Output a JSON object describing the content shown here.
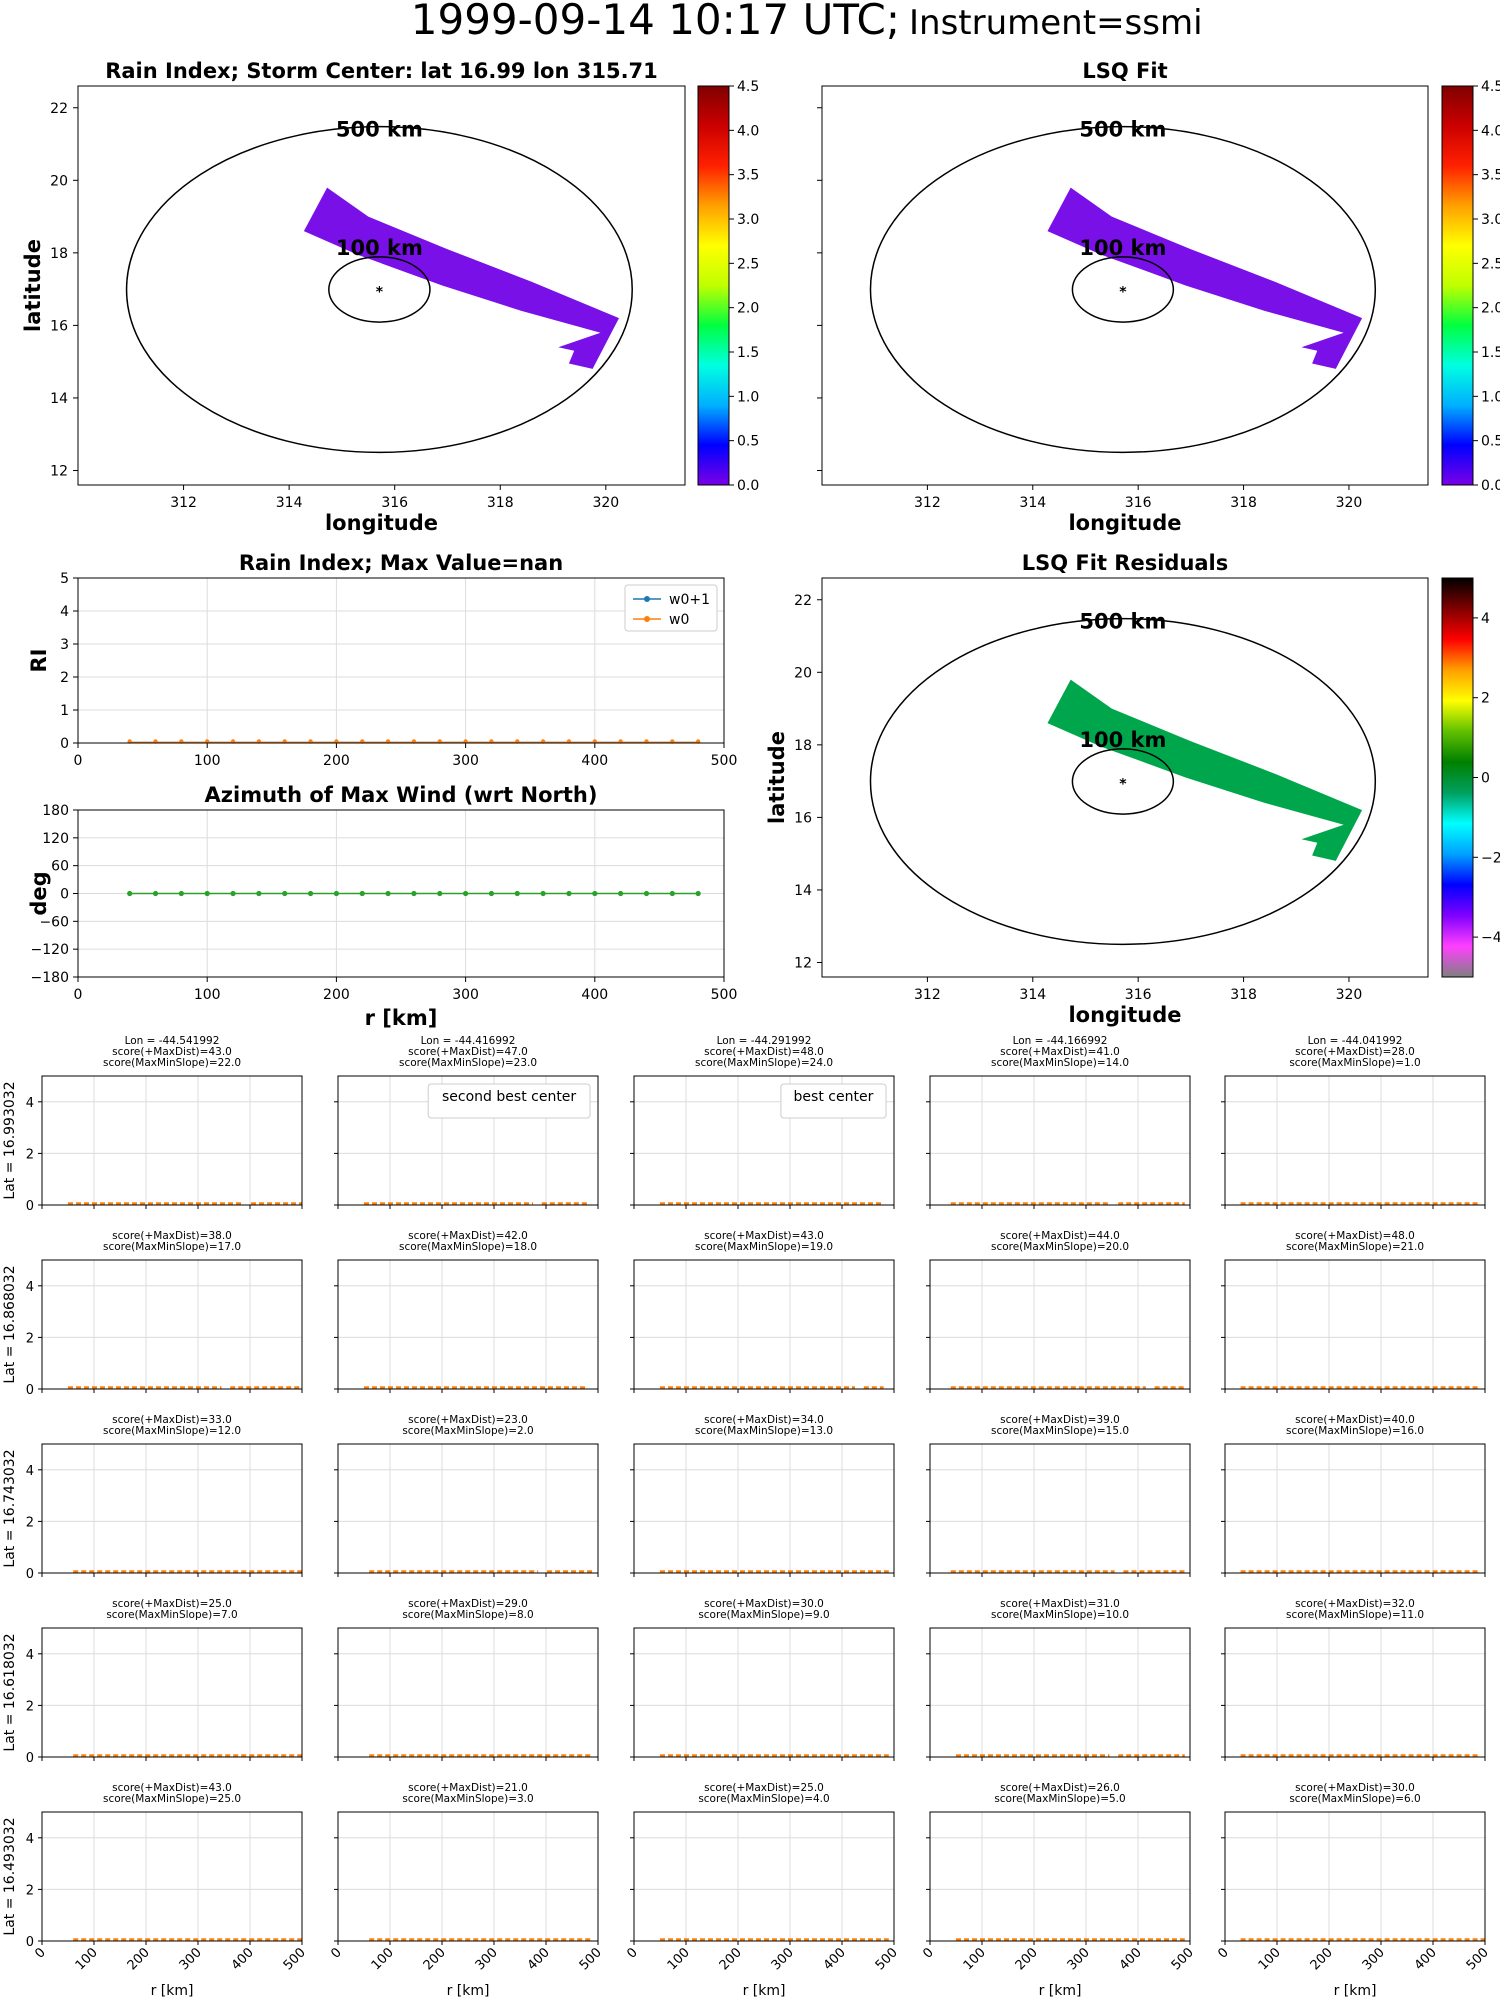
{
  "header": {
    "datetime": "1999-09-14 10:17 UTC;",
    "instrument": "Instrument=ssmi"
  },
  "chart_data": [
    {
      "id": "rain_index_map",
      "type": "heatmap",
      "title": "Rain Index; Storm Center: lat 16.99 lon 315.71",
      "xlabel": "longitude",
      "ylabel": "latitude",
      "xlim": [
        310,
        321.5
      ],
      "ylim": [
        11.6,
        22.6
      ],
      "xticks": [
        "312",
        "314",
        "316",
        "318",
        "320"
      ],
      "yticks": [
        "12",
        "14",
        "16",
        "18",
        "20",
        "22"
      ],
      "storm_center": {
        "lat": 16.99,
        "lon": 315.71
      },
      "rings": [
        "500 km",
        "100 km"
      ],
      "colorbar": {
        "min": 0,
        "max": 4.5,
        "ticks": [
          "0.0",
          "0.5",
          "1.0",
          "1.5",
          "2.0",
          "2.5",
          "3.0",
          "3.5",
          "4.0",
          "4.5"
        ],
        "colormap": "rainbow"
      },
      "swath_color": "#7a10e8"
    },
    {
      "id": "lsq_fit_map",
      "type": "heatmap",
      "title": "LSQ Fit",
      "xlabel": "longitude",
      "ylabel": "",
      "xlim": [
        310,
        321.5
      ],
      "ylim": [
        11.6,
        22.6
      ],
      "xticks": [
        "312",
        "314",
        "316",
        "318",
        "320"
      ],
      "rings": [
        "500 km",
        "100 km"
      ],
      "colorbar": {
        "min": 0,
        "max": 4.5,
        "ticks": [
          "0.0",
          "0.5",
          "1.0",
          "1.5",
          "2.0",
          "2.5",
          "3.0",
          "3.5",
          "4.0",
          "4.5"
        ],
        "colormap": "rainbow"
      },
      "swath_color": "#7a10e8"
    },
    {
      "id": "rain_index_profile",
      "type": "line",
      "title": "Rain Index; Max Value=nan",
      "xlabel": "",
      "ylabel": "RI",
      "xlim": [
        0,
        500
      ],
      "ylim": [
        0,
        5
      ],
      "xticks": [
        "0",
        "100",
        "200",
        "300",
        "400",
        "500"
      ],
      "yticks": [
        "0",
        "1",
        "2",
        "3",
        "4",
        "5"
      ],
      "x": [
        40,
        60,
        80,
        100,
        120,
        140,
        160,
        180,
        200,
        220,
        240,
        260,
        280,
        300,
        320,
        340,
        360,
        380,
        400,
        420,
        440,
        460,
        480
      ],
      "series": [
        {
          "name": "w0+1",
          "color": "#1f77b4",
          "marker": "*"
        },
        {
          "name": "w0",
          "color": "#ff7f0e",
          "marker": "."
        }
      ]
    },
    {
      "id": "azimuth_profile",
      "type": "line",
      "title": "Azimuth of Max Wind (wrt North)",
      "xlabel": "r [km]",
      "ylabel": "deg",
      "xlim": [
        0,
        500
      ],
      "ylim": [
        -180,
        180
      ],
      "xticks": [
        "0",
        "100",
        "200",
        "300",
        "400",
        "500"
      ],
      "yticks": [
        "180",
        "120",
        "60",
        "0",
        "−60",
        "−120",
        "−180"
      ],
      "x": [
        40,
        60,
        80,
        100,
        120,
        140,
        160,
        180,
        200,
        220,
        240,
        260,
        280,
        300,
        320,
        340,
        360,
        380,
        400,
        420,
        440,
        460,
        480
      ],
      "values": [
        0,
        0,
        0,
        0,
        0,
        0,
        0,
        0,
        0,
        0,
        0,
        0,
        0,
        0,
        0,
        0,
        0,
        0,
        0,
        0,
        0,
        0,
        0
      ],
      "color": "#2ca02c"
    },
    {
      "id": "lsq_residuals_map",
      "type": "heatmap",
      "title": "LSQ Fit Residuals",
      "xlabel": "longitude",
      "ylabel": "latitude",
      "xlim": [
        310,
        321.5
      ],
      "ylim": [
        11.6,
        22.6
      ],
      "xticks": [
        "312",
        "314",
        "316",
        "318",
        "320"
      ],
      "yticks": [
        "12",
        "14",
        "16",
        "18",
        "20",
        "22"
      ],
      "rings": [
        "500 km",
        "100 km"
      ],
      "colorbar": {
        "min": -5,
        "max": 5,
        "ticks": [
          "4",
          "2",
          "0",
          "−2",
          "−4"
        ],
        "colormap": "diverging"
      },
      "swath_color": "#00a64c"
    },
    {
      "id": "center_grid",
      "type": "line",
      "xlabel": "r [km]",
      "xlim": [
        0,
        500
      ],
      "ylim": [
        0,
        5
      ],
      "xticks": [
        "0",
        "100",
        "200",
        "300",
        "400",
        "500"
      ],
      "yticks": [
        "0",
        "2",
        "4"
      ],
      "row_labels": [
        "Lat = 16.993032",
        "Lat = 16.868032",
        "Lat = 16.743032",
        "Lat = 16.618032",
        "Lat = 16.493032"
      ],
      "columns_lon": [
        "Lon = -44.541992",
        "Lon = -44.416992",
        "Lon = -44.291992",
        "Lon = -44.166992",
        "Lon = -44.041992"
      ],
      "cells": [
        [
          {
            "lines": [
              "Lon = -44.541992",
              "score(+MaxDist)=43.0",
              "score(MaxMinSlope)=22.0"
            ],
            "color": "#000000",
            "x0": 50,
            "x1": 500,
            "gaps": [
              390
            ],
            "legend": ""
          },
          {
            "lines": [
              "Lon = -44.416992",
              "score(+MaxDist)=47.0",
              "score(MaxMinSlope)=23.0"
            ],
            "color": "#ff0000",
            "x0": 50,
            "x1": 480,
            "gaps": [
              380
            ],
            "legend": "second best center"
          },
          {
            "lines": [
              "Lon = -44.291992",
              "score(+MaxDist)=48.0",
              "score(MaxMinSlope)=24.0"
            ],
            "color": "#800080",
            "x0": 50,
            "x1": 480,
            "gaps": [],
            "legend": "best center"
          },
          {
            "lines": [
              "Lon = -44.166992",
              "score(+MaxDist)=41.0",
              "score(MaxMinSlope)=14.0"
            ],
            "color": "#000000",
            "x0": 40,
            "x1": 490,
            "gaps": [
              350
            ],
            "legend": ""
          },
          {
            "lines": [
              "Lon = -44.041992",
              "score(+MaxDist)=28.0",
              "score(MaxMinSlope)=1.0"
            ],
            "color": "#000000",
            "x0": 30,
            "x1": 490,
            "gaps": [],
            "legend": ""
          }
        ],
        [
          {
            "lines": [
              "score(+MaxDist)=38.0",
              "score(MaxMinSlope)=17.0"
            ],
            "color": "#000000",
            "x0": 50,
            "x1": 500,
            "gaps": [
              350
            ],
            "legend": ""
          },
          {
            "lines": [
              "score(+MaxDist)=42.0",
              "score(MaxMinSlope)=18.0"
            ],
            "color": "#000000",
            "x0": 50,
            "x1": 480,
            "gaps": [],
            "legend": ""
          },
          {
            "lines": [
              "score(+MaxDist)=43.0",
              "score(MaxMinSlope)=19.0"
            ],
            "color": "#000000",
            "x0": 50,
            "x1": 480,
            "gaps": [
              430
            ],
            "legend": ""
          },
          {
            "lines": [
              "score(+MaxDist)=44.0",
              "score(MaxMinSlope)=20.0"
            ],
            "color": "#000000",
            "x0": 40,
            "x1": 490,
            "gaps": [
              420
            ],
            "legend": ""
          },
          {
            "lines": [
              "score(+MaxDist)=48.0",
              "score(MaxMinSlope)=21.0"
            ],
            "color": "#000000",
            "x0": 30,
            "x1": 490,
            "gaps": [],
            "legend": ""
          }
        ],
        [
          {
            "lines": [
              "score(+MaxDist)=33.0",
              "score(MaxMinSlope)=12.0"
            ],
            "color": "#000000",
            "x0": 60,
            "x1": 500,
            "gaps": [],
            "legend": ""
          },
          {
            "lines": [
              "score(+MaxDist)=23.0",
              "score(MaxMinSlope)=2.0"
            ],
            "color": "#000000",
            "x0": 60,
            "x1": 490,
            "gaps": [
              390
            ],
            "legend": ""
          },
          {
            "lines": [
              "score(+MaxDist)=34.0",
              "score(MaxMinSlope)=13.0"
            ],
            "color": "#000000",
            "x0": 50,
            "x1": 490,
            "gaps": [],
            "legend": ""
          },
          {
            "lines": [
              "score(+MaxDist)=39.0",
              "score(MaxMinSlope)=15.0"
            ],
            "color": "#000000",
            "x0": 40,
            "x1": 490,
            "gaps": [
              360
            ],
            "legend": ""
          },
          {
            "lines": [
              "score(+MaxDist)=40.0",
              "score(MaxMinSlope)=16.0"
            ],
            "color": "#000000",
            "x0": 30,
            "x1": 490,
            "gaps": [],
            "legend": ""
          }
        ],
        [
          {
            "lines": [
              "score(+MaxDist)=25.0",
              "score(MaxMinSlope)=7.0"
            ],
            "color": "#000000",
            "x0": 60,
            "x1": 500,
            "gaps": [],
            "legend": ""
          },
          {
            "lines": [
              "score(+MaxDist)=29.0",
              "score(MaxMinSlope)=8.0"
            ],
            "color": "#000000",
            "x0": 60,
            "x1": 490,
            "gaps": [],
            "legend": ""
          },
          {
            "lines": [
              "score(+MaxDist)=30.0",
              "score(MaxMinSlope)=9.0"
            ],
            "color": "#000000",
            "x0": 50,
            "x1": 490,
            "gaps": [],
            "legend": ""
          },
          {
            "lines": [
              "score(+MaxDist)=31.0",
              "score(MaxMinSlope)=10.0"
            ],
            "color": "#000000",
            "x0": 50,
            "x1": 490,
            "gaps": [
              350
            ],
            "legend": ""
          },
          {
            "lines": [
              "score(+MaxDist)=32.0",
              "score(MaxMinSlope)=11.0"
            ],
            "color": "#000000",
            "x0": 30,
            "x1": 490,
            "gaps": [],
            "legend": ""
          }
        ],
        [
          {
            "lines": [
              "score(+MaxDist)=43.0",
              "score(MaxMinSlope)=25.0"
            ],
            "color": "#000000",
            "x0": 60,
            "x1": 500,
            "gaps": [],
            "legend": ""
          },
          {
            "lines": [
              "score(+MaxDist)=21.0",
              "score(MaxMinSlope)=3.0"
            ],
            "color": "#000000",
            "x0": 60,
            "x1": 490,
            "gaps": [],
            "legend": ""
          },
          {
            "lines": [
              "score(+MaxDist)=25.0",
              "score(MaxMinSlope)=4.0"
            ],
            "color": "#000000",
            "x0": 50,
            "x1": 490,
            "gaps": [],
            "legend": ""
          },
          {
            "lines": [
              "score(+MaxDist)=26.0",
              "score(MaxMinSlope)=5.0"
            ],
            "color": "#000000",
            "x0": 50,
            "x1": 490,
            "gaps": [],
            "legend": ""
          },
          {
            "lines": [
              "score(+MaxDist)=30.0",
              "score(MaxMinSlope)=6.0"
            ],
            "color": "#000000",
            "x0": 30,
            "x1": 500,
            "gaps": [],
            "legend": ""
          }
        ]
      ]
    }
  ]
}
